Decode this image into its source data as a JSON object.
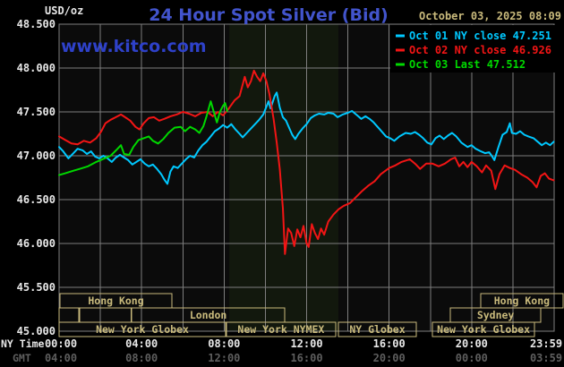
{
  "header": {
    "unit_label": "USD/oz",
    "title": "24 Hour Spot Silver (Bid)",
    "datetime": "October 03, 2025 08:09",
    "watermark": "www.kitco.com"
  },
  "axis_corner": {
    "ny_time": "NY Time",
    "gmt": "GMT"
  },
  "colors": {
    "bg": "#000000",
    "plot_bg": "#0b0b0b",
    "nymex_band": "#12180d",
    "grid": "#7e7e7e",
    "text_white": "#e8e8e8",
    "text_gray": "#5e5e5e",
    "tan": "#c9ba7c",
    "title_blue": "#4254cc",
    "watermark_blue": "#2e41c9",
    "cyan": "#00c8ff",
    "red": "#f21515",
    "green": "#00d800"
  },
  "chart_data": {
    "type": "line",
    "title": "24 Hour Spot Silver (Bid)",
    "ylabel": "USD/oz",
    "grid": true,
    "legend_position": "top-right",
    "y_axis": {
      "min": 45.0,
      "max": 48.5,
      "ticks": [
        {
          "v": 48.5,
          "label": "48.500"
        },
        {
          "v": 48.0,
          "label": "48.000"
        },
        {
          "v": 47.5,
          "label": "47.500"
        },
        {
          "v": 47.0,
          "label": "47.000"
        },
        {
          "v": 46.5,
          "label": "46.500"
        },
        {
          "v": 46.0,
          "label": "46.000"
        },
        {
          "v": 45.5,
          "label": "45.500"
        },
        {
          "v": 45.0,
          "label": "45.000"
        }
      ]
    },
    "x_axis": {
      "hours": 24,
      "ticks": [
        {
          "t": 0,
          "ny": "00:00",
          "gmt": "04:00"
        },
        {
          "t": 4,
          "ny": "04:00",
          "gmt": "08:00"
        },
        {
          "t": 8,
          "ny": "08:00",
          "gmt": "12:00"
        },
        {
          "t": 12,
          "ny": "12:00",
          "gmt": "16:00"
        },
        {
          "t": 16,
          "ny": "16:00",
          "gmt": "20:00"
        },
        {
          "t": 20,
          "ny": "20:00",
          "gmt": "00:00"
        },
        {
          "t": 23.983,
          "ny": "23:59",
          "gmt": "03:59"
        }
      ]
    },
    "nymex_band": {
      "t1": 8.25,
      "t2": 13.54
    },
    "legend": [
      {
        "label": "Oct 01 NY close 47.251",
        "color": "#00c8ff"
      },
      {
        "label": "Oct 02 NY close 46.926",
        "color": "#f21515"
      },
      {
        "label": "Oct 03 Last 47.512",
        "color": "#00d800"
      }
    ],
    "sessions": [
      {
        "label": "Hong Kong",
        "row": 0,
        "t1": 0.04,
        "t2": 5.47
      },
      {
        "label": "Hong Kong",
        "row": 0,
        "t1": 20.44,
        "t2": 24.43
      },
      {
        "label": "",
        "row": 1,
        "t1": 0.0,
        "t2": 0.95
      },
      {
        "label": "",
        "row": 1,
        "t1": 1.0,
        "t2": 3.5
      },
      {
        "label": "London",
        "row": 1,
        "t1": 3.52,
        "t2": 10.94
      },
      {
        "label": "Sydney",
        "row": 1,
        "t1": 18.97,
        "t2": 23.35
      },
      {
        "label": "New York Globex",
        "row": 2,
        "t1": 0.0,
        "t2": 8.07
      },
      {
        "label": "New York NYMEX",
        "row": 2,
        "t1": 8.11,
        "t2": 13.41
      },
      {
        "label": "NY Globex",
        "row": 2,
        "t1": 13.54,
        "t2": 17.32
      },
      {
        "label": "New York Globex",
        "row": 2,
        "t1": 18.1,
        "t2": 23.05
      }
    ],
    "series": [
      {
        "name": "oct01-ny-close",
        "color": "#00c8ff",
        "points": [
          [
            0,
            47.1
          ],
          [
            0.2,
            47.05
          ],
          [
            0.45,
            46.97
          ],
          [
            0.7,
            47.03
          ],
          [
            0.9,
            47.08
          ],
          [
            1.15,
            47.06
          ],
          [
            1.35,
            47.02
          ],
          [
            1.55,
            47.05
          ],
          [
            1.75,
            46.99
          ],
          [
            1.95,
            46.97
          ],
          [
            2.15,
            47.0
          ],
          [
            2.35,
            46.97
          ],
          [
            2.55,
            46.93
          ],
          [
            2.75,
            46.98
          ],
          [
            2.95,
            47.01
          ],
          [
            3.15,
            46.98
          ],
          [
            3.35,
            46.95
          ],
          [
            3.55,
            46.9
          ],
          [
            3.75,
            46.93
          ],
          [
            3.95,
            46.96
          ],
          [
            4.15,
            46.91
          ],
          [
            4.35,
            46.88
          ],
          [
            4.55,
            46.9
          ],
          [
            4.75,
            46.85
          ],
          [
            4.95,
            46.79
          ],
          [
            5.1,
            46.73
          ],
          [
            5.25,
            46.68
          ],
          [
            5.4,
            46.82
          ],
          [
            5.55,
            46.88
          ],
          [
            5.75,
            46.86
          ],
          [
            5.95,
            46.91
          ],
          [
            6.15,
            46.96
          ],
          [
            6.35,
            47.0
          ],
          [
            6.55,
            46.98
          ],
          [
            6.75,
            47.06
          ],
          [
            6.95,
            47.12
          ],
          [
            7.15,
            47.16
          ],
          [
            7.35,
            47.22
          ],
          [
            7.55,
            47.28
          ],
          [
            7.75,
            47.31
          ],
          [
            7.95,
            47.35
          ],
          [
            8.15,
            47.32
          ],
          [
            8.35,
            47.36
          ],
          [
            8.55,
            47.3
          ],
          [
            8.75,
            47.25
          ],
          [
            8.9,
            47.21
          ],
          [
            9.1,
            47.26
          ],
          [
            9.3,
            47.31
          ],
          [
            9.5,
            47.36
          ],
          [
            9.7,
            47.41
          ],
          [
            9.9,
            47.47
          ],
          [
            10.05,
            47.56
          ],
          [
            10.15,
            47.62
          ],
          [
            10.25,
            47.54
          ],
          [
            10.45,
            47.68
          ],
          [
            10.55,
            47.72
          ],
          [
            10.7,
            47.55
          ],
          [
            10.85,
            47.44
          ],
          [
            11.0,
            47.4
          ],
          [
            11.15,
            47.32
          ],
          [
            11.3,
            47.24
          ],
          [
            11.45,
            47.19
          ],
          [
            11.6,
            47.25
          ],
          [
            11.8,
            47.31
          ],
          [
            12.0,
            47.36
          ],
          [
            12.2,
            47.43
          ],
          [
            12.4,
            47.46
          ],
          [
            12.6,
            47.48
          ],
          [
            12.85,
            47.47
          ],
          [
            13.05,
            47.49
          ],
          [
            13.3,
            47.48
          ],
          [
            13.5,
            47.44
          ],
          [
            13.75,
            47.47
          ],
          [
            14.0,
            47.49
          ],
          [
            14.2,
            47.51
          ],
          [
            14.45,
            47.46
          ],
          [
            14.65,
            47.42
          ],
          [
            14.85,
            47.45
          ],
          [
            15.05,
            47.42
          ],
          [
            15.25,
            47.38
          ],
          [
            15.55,
            47.3
          ],
          [
            15.85,
            47.22
          ],
          [
            16.05,
            47.2
          ],
          [
            16.25,
            47.17
          ],
          [
            16.5,
            47.22
          ],
          [
            16.8,
            47.26
          ],
          [
            17.05,
            47.25
          ],
          [
            17.25,
            47.27
          ],
          [
            17.45,
            47.24
          ],
          [
            17.65,
            47.2
          ],
          [
            17.85,
            47.15
          ],
          [
            18.05,
            47.13
          ],
          [
            18.25,
            47.2
          ],
          [
            18.45,
            47.23
          ],
          [
            18.65,
            47.19
          ],
          [
            18.85,
            47.23
          ],
          [
            19.05,
            47.26
          ],
          [
            19.25,
            47.22
          ],
          [
            19.5,
            47.15
          ],
          [
            19.8,
            47.1
          ],
          [
            20.0,
            47.12
          ],
          [
            20.2,
            47.08
          ],
          [
            20.45,
            47.05
          ],
          [
            20.65,
            47.03
          ],
          [
            20.85,
            47.04
          ],
          [
            21.0,
            46.99
          ],
          [
            21.1,
            46.95
          ],
          [
            21.3,
            47.1
          ],
          [
            21.5,
            47.24
          ],
          [
            21.7,
            47.27
          ],
          [
            21.85,
            47.37
          ],
          [
            21.95,
            47.26
          ],
          [
            22.15,
            47.25
          ],
          [
            22.35,
            47.28
          ],
          [
            22.55,
            47.24
          ],
          [
            22.75,
            47.22
          ],
          [
            23.0,
            47.2
          ],
          [
            23.2,
            47.16
          ],
          [
            23.4,
            47.12
          ],
          [
            23.6,
            47.15
          ],
          [
            23.8,
            47.12
          ],
          [
            23.98,
            47.16
          ]
        ]
      },
      {
        "name": "oct02-ny-close",
        "color": "#f21515",
        "points": [
          [
            0,
            47.22
          ],
          [
            0.3,
            47.18
          ],
          [
            0.6,
            47.14
          ],
          [
            0.9,
            47.13
          ],
          [
            1.2,
            47.17
          ],
          [
            1.5,
            47.15
          ],
          [
            1.8,
            47.2
          ],
          [
            2.05,
            47.28
          ],
          [
            2.25,
            47.37
          ],
          [
            2.5,
            47.41
          ],
          [
            2.75,
            47.44
          ],
          [
            3.0,
            47.47
          ],
          [
            3.2,
            47.44
          ],
          [
            3.45,
            47.4
          ],
          [
            3.7,
            47.33
          ],
          [
            3.9,
            47.3
          ],
          [
            4.1,
            47.37
          ],
          [
            4.35,
            47.43
          ],
          [
            4.6,
            47.44
          ],
          [
            4.85,
            47.4
          ],
          [
            5.1,
            47.42
          ],
          [
            5.4,
            47.45
          ],
          [
            5.7,
            47.47
          ],
          [
            6.0,
            47.5
          ],
          [
            6.3,
            47.48
          ],
          [
            6.6,
            47.45
          ],
          [
            6.9,
            47.49
          ],
          [
            7.2,
            47.5
          ],
          [
            7.45,
            47.45
          ],
          [
            7.7,
            47.5
          ],
          [
            7.95,
            47.46
          ],
          [
            8.2,
            47.53
          ],
          [
            8.5,
            47.63
          ],
          [
            8.75,
            47.68
          ],
          [
            9.0,
            47.9
          ],
          [
            9.15,
            47.78
          ],
          [
            9.3,
            47.85
          ],
          [
            9.45,
            47.97
          ],
          [
            9.6,
            47.9
          ],
          [
            9.75,
            47.85
          ],
          [
            9.9,
            47.94
          ],
          [
            10.05,
            47.85
          ],
          [
            10.2,
            47.7
          ],
          [
            10.4,
            47.42
          ],
          [
            10.55,
            47.15
          ],
          [
            10.7,
            46.85
          ],
          [
            10.85,
            46.4
          ],
          [
            10.95,
            45.88
          ],
          [
            11.1,
            46.17
          ],
          [
            11.25,
            46.12
          ],
          [
            11.4,
            45.97
          ],
          [
            11.55,
            46.16
          ],
          [
            11.7,
            46.07
          ],
          [
            11.85,
            46.2
          ],
          [
            12.0,
            46.0
          ],
          [
            12.1,
            45.96
          ],
          [
            12.25,
            46.22
          ],
          [
            12.4,
            46.12
          ],
          [
            12.55,
            46.05
          ],
          [
            12.7,
            46.17
          ],
          [
            12.85,
            46.1
          ],
          [
            13.05,
            46.25
          ],
          [
            13.3,
            46.33
          ],
          [
            13.55,
            46.39
          ],
          [
            13.8,
            46.43
          ],
          [
            14.1,
            46.46
          ],
          [
            14.4,
            46.53
          ],
          [
            14.7,
            46.6
          ],
          [
            15.0,
            46.66
          ],
          [
            15.3,
            46.71
          ],
          [
            15.6,
            46.79
          ],
          [
            16.0,
            46.86
          ],
          [
            16.3,
            46.89
          ],
          [
            16.6,
            46.93
          ],
          [
            17.0,
            46.96
          ],
          [
            17.3,
            46.9
          ],
          [
            17.5,
            46.85
          ],
          [
            17.8,
            46.91
          ],
          [
            18.1,
            46.91
          ],
          [
            18.4,
            46.88
          ],
          [
            18.7,
            46.91
          ],
          [
            19.0,
            46.96
          ],
          [
            19.2,
            46.98
          ],
          [
            19.4,
            46.88
          ],
          [
            19.6,
            46.93
          ],
          [
            19.8,
            46.87
          ],
          [
            20.0,
            46.93
          ],
          [
            20.25,
            46.88
          ],
          [
            20.5,
            46.81
          ],
          [
            20.7,
            46.89
          ],
          [
            20.95,
            46.83
          ],
          [
            21.15,
            46.62
          ],
          [
            21.35,
            46.79
          ],
          [
            21.6,
            46.89
          ],
          [
            21.85,
            46.86
          ],
          [
            22.1,
            46.84
          ],
          [
            22.4,
            46.79
          ],
          [
            22.7,
            46.75
          ],
          [
            22.95,
            46.7
          ],
          [
            23.15,
            46.64
          ],
          [
            23.35,
            46.77
          ],
          [
            23.55,
            46.8
          ],
          [
            23.75,
            46.74
          ],
          [
            23.98,
            46.72
          ]
        ]
      },
      {
        "name": "oct03-last",
        "color": "#00d800",
        "points": [
          [
            0,
            46.78
          ],
          [
            0.3,
            46.8
          ],
          [
            0.7,
            46.83
          ],
          [
            1.0,
            46.85
          ],
          [
            1.4,
            46.88
          ],
          [
            1.8,
            46.93
          ],
          [
            2.1,
            46.96
          ],
          [
            2.5,
            47.0
          ],
          [
            2.8,
            47.07
          ],
          [
            3.0,
            47.12
          ],
          [
            3.15,
            47.02
          ],
          [
            3.4,
            47.01
          ],
          [
            3.6,
            47.1
          ],
          [
            3.85,
            47.18
          ],
          [
            4.1,
            47.2
          ],
          [
            4.35,
            47.22
          ],
          [
            4.55,
            47.17
          ],
          [
            4.8,
            47.14
          ],
          [
            5.05,
            47.19
          ],
          [
            5.3,
            47.26
          ],
          [
            5.6,
            47.32
          ],
          [
            5.9,
            47.33
          ],
          [
            6.1,
            47.28
          ],
          [
            6.35,
            47.33
          ],
          [
            6.6,
            47.3
          ],
          [
            6.8,
            47.26
          ],
          [
            7.0,
            47.34
          ],
          [
            7.15,
            47.45
          ],
          [
            7.35,
            47.62
          ],
          [
            7.5,
            47.5
          ],
          [
            7.65,
            47.38
          ],
          [
            7.8,
            47.5
          ],
          [
            7.95,
            47.57
          ],
          [
            8.05,
            47.6
          ],
          [
            8.15,
            47.51
          ]
        ]
      }
    ]
  }
}
